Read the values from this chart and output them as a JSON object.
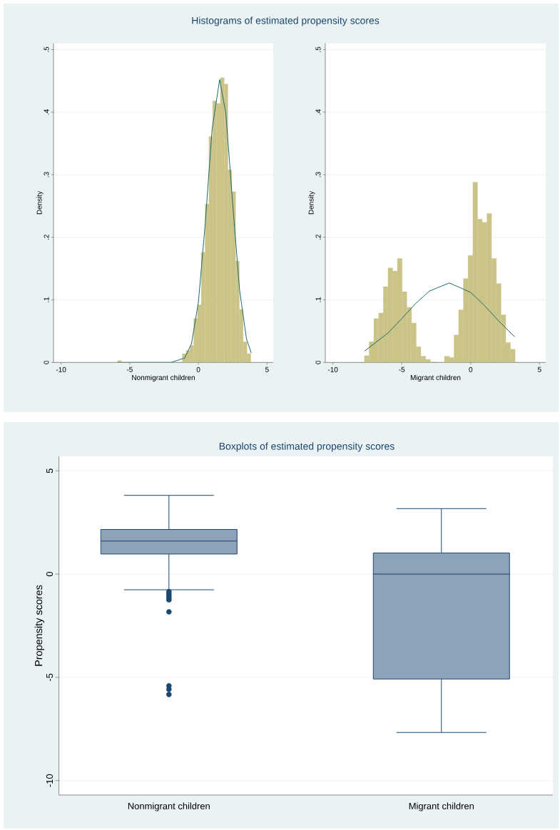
{
  "chart_data": [
    {
      "type": "histogram",
      "title": "Histograms of estimated propensity scores",
      "xlabel": "Nonmigrant children",
      "ylabel": "Density",
      "series": [
        {
          "type": "histogram",
          "color": "#cbc488",
          "bins": [
            -5.88,
            -5.6,
            -5.33,
            -5.05,
            -4.77,
            -4.5,
            -4.22,
            -3.94,
            -3.66,
            -3.39,
            -3.11,
            -2.83,
            -2.56,
            -2.28,
            -2.0,
            -1.73,
            -1.45,
            -1.17,
            -0.89,
            -0.62,
            -0.34,
            -0.06,
            0.21,
            0.49,
            0.77,
            1.04,
            1.32,
            1.6,
            1.88,
            2.15,
            2.43,
            2.71,
            2.98,
            3.26,
            3.54,
            3.82
          ],
          "values": [
            0.003,
            0,
            0,
            0,
            0,
            0,
            0,
            0,
            0,
            0,
            0,
            0,
            0,
            0,
            0,
            0,
            0,
            0.014,
            0.019,
            0.027,
            0.07,
            0.092,
            0.176,
            0.253,
            0.361,
            0.418,
            0.414,
            0.455,
            0.445,
            0.308,
            0.273,
            0.162,
            0.085,
            0.033,
            0.014
          ]
        },
        {
          "type": "line",
          "color": "#1e6b68",
          "x": [
            -5.9,
            -3,
            -2,
            -1,
            -0.5,
            0,
            0.5,
            1,
            1.55,
            2,
            2.5,
            3,
            3.5,
            3.85
          ],
          "values": [
            0,
            0,
            0,
            0.007,
            0.03,
            0.096,
            0.222,
            0.373,
            0.452,
            0.398,
            0.253,
            0.116,
            0.038,
            0.015
          ]
        }
      ],
      "xlim": [
        -10.55,
        5.45
      ],
      "ylim": [
        0,
        0.51
      ],
      "xticks": [
        -10,
        -5,
        0,
        5
      ],
      "yticks": [
        0,
        {
          "value": 0.1,
          "label": ".1"
        },
        {
          "value": 0.2,
          "label": ".2"
        },
        {
          "value": 0.3,
          "label": ".3"
        },
        {
          "value": 0.4,
          "label": ".4"
        },
        {
          "value": 0.5,
          "label": ".5"
        }
      ],
      "grid": "y"
    },
    {
      "type": "histogram",
      "xlabel": "Migrant children",
      "ylabel": "Density",
      "series": [
        {
          "type": "histogram",
          "color": "#cbc488",
          "bins": [
            -7.71,
            -7.37,
            -7.03,
            -6.68,
            -6.34,
            -6.0,
            -5.66,
            -5.32,
            -4.97,
            -4.63,
            -4.29,
            -3.95,
            -3.61,
            -3.26,
            -2.92,
            -2.58,
            -2.24,
            -1.9,
            -1.55,
            -1.21,
            -0.87,
            -0.53,
            -0.19,
            0.16,
            0.5,
            0.84,
            1.18,
            1.52,
            1.87,
            2.21,
            2.55,
            2.89,
            3.23
          ],
          "values": [
            0.011,
            0.033,
            0.07,
            0.079,
            0.121,
            0.151,
            0.146,
            0.166,
            0.113,
            0.088,
            0.063,
            0.025,
            0.01,
            0.005,
            0.001,
            0,
            0,
            0.01,
            0.008,
            0.044,
            0.084,
            0.134,
            0.171,
            0.288,
            0.229,
            0.224,
            0.238,
            0.166,
            0.126,
            0.076,
            0.032,
            0.021
          ]
        },
        {
          "type": "line",
          "color": "#1e6b68",
          "x": [
            -7.71,
            -6,
            -5,
            -4,
            -3,
            -1.55,
            0,
            1,
            2,
            3.19
          ],
          "values": [
            0.018,
            0.047,
            0.07,
            0.094,
            0.114,
            0.127,
            0.112,
            0.091,
            0.067,
            0.041
          ]
        }
      ],
      "xlim": [
        -10.55,
        5.45
      ],
      "ylim": [
        0,
        0.51
      ],
      "xticks": [
        -10,
        -5,
        0,
        5
      ],
      "yticks": [
        0,
        {
          "value": 0.1,
          "label": ".1"
        },
        {
          "value": 0.2,
          "label": ".2"
        },
        {
          "value": 0.3,
          "label": ".3"
        },
        {
          "value": 0.4,
          "label": ".4"
        },
        {
          "value": 0.5,
          "label": ".5"
        }
      ],
      "grid": "y"
    },
    {
      "type": "box",
      "title": "Boxplots of estimated propensity scores",
      "ylabel": "Propensity scores",
      "categories": [
        "Nonmigrant children",
        "Migrant children"
      ],
      "series": [
        {
          "color": "#8ea3b8",
          "boxes": [
            {
              "low": -0.76,
              "q1": 0.97,
              "median": 1.6,
              "q3": 2.16,
              "high": 3.81,
              "outliers": [
                -0.85,
                -0.95,
                -1.05,
                -1.15,
                -1.25,
                -1.83,
                -5.41,
                -5.58,
                -5.83
              ]
            },
            {
              "low": -7.67,
              "q1": -5.08,
              "median": 0,
              "q3": 1.02,
              "high": 3.17
            }
          ]
        }
      ],
      "ylim": [
        -10.7,
        5.7
      ],
      "yticks": [
        -10,
        -5,
        0,
        5
      ],
      "grid": "y"
    }
  ]
}
